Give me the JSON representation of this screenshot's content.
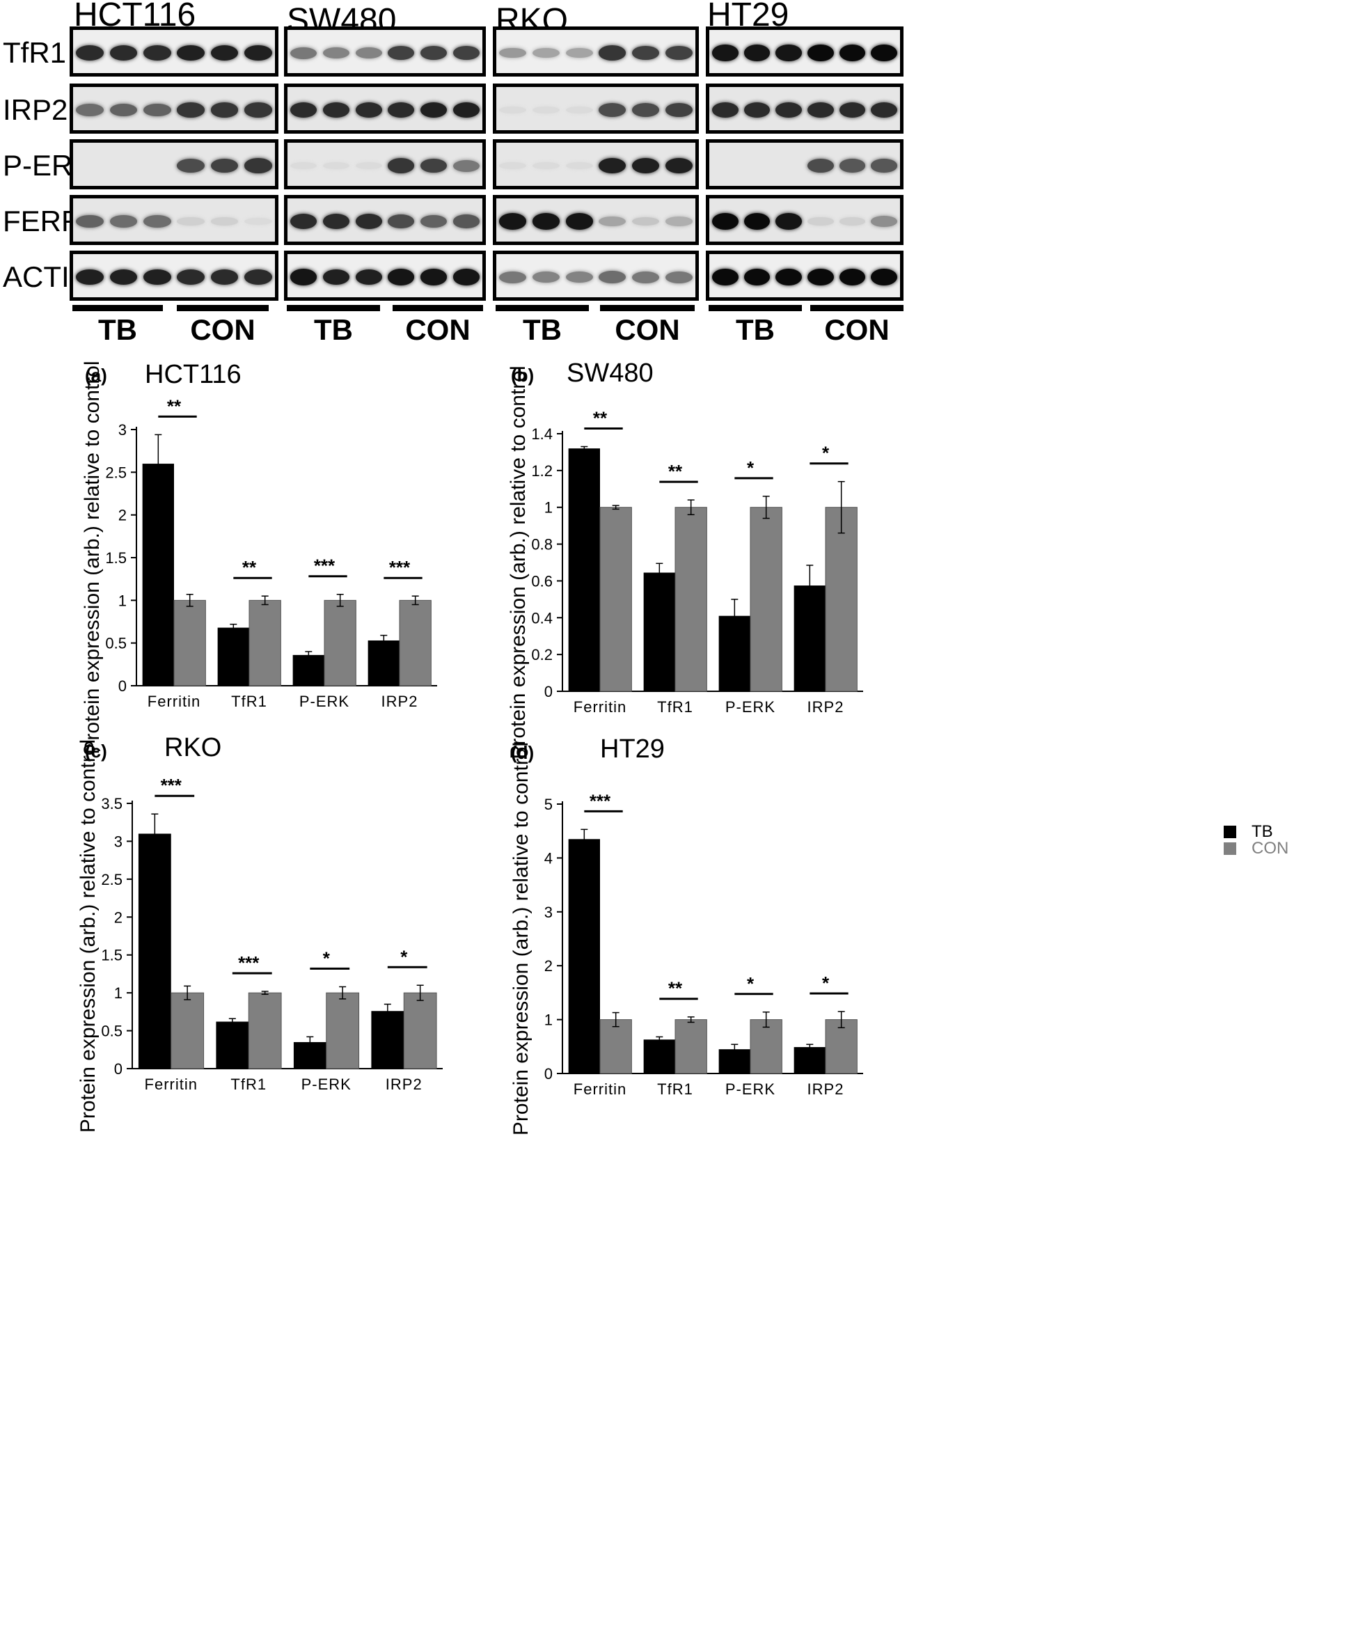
{
  "blots": {
    "cell_lines": [
      "HCT116",
      "SW480",
      "RKO",
      "HT29"
    ],
    "rows": [
      "TfR1",
      "IRP2",
      "P-ERK",
      "FERR",
      "ACTIN"
    ],
    "groups": [
      "TB",
      "CON"
    ],
    "band_intensity": {
      "HCT116": {
        "TfR1": [
          0.85,
          0.85,
          0.85,
          0.9,
          0.9,
          0.9
        ],
        "IRP2": [
          0.55,
          0.6,
          0.6,
          0.8,
          0.8,
          0.8
        ],
        "P-ERK": [
          0,
          0,
          0,
          0.7,
          0.75,
          0.8
        ],
        "FERR": [
          0.6,
          0.55,
          0.55,
          0.1,
          0.1,
          0.05
        ],
        "ACTIN": [
          0.9,
          0.9,
          0.9,
          0.85,
          0.85,
          0.85
        ]
      },
      "SW480": {
        "TfR1": [
          0.5,
          0.45,
          0.45,
          0.75,
          0.75,
          0.75
        ],
        "IRP2": [
          0.85,
          0.85,
          0.85,
          0.85,
          0.9,
          0.9
        ],
        "P-ERK": [
          0.05,
          0.05,
          0.05,
          0.8,
          0.75,
          0.5
        ],
        "FERR": [
          0.85,
          0.85,
          0.85,
          0.7,
          0.6,
          0.65
        ],
        "ACTIN": [
          0.95,
          0.9,
          0.9,
          0.95,
          0.95,
          0.95
        ]
      },
      "RKO": {
        "TfR1": [
          0.35,
          0.3,
          0.3,
          0.8,
          0.75,
          0.75
        ],
        "IRP2": [
          0.05,
          0.05,
          0.05,
          0.7,
          0.7,
          0.75
        ],
        "P-ERK": [
          0.05,
          0.05,
          0.05,
          0.9,
          0.9,
          0.9
        ],
        "FERR": [
          0.95,
          0.95,
          0.95,
          0.3,
          0.15,
          0.25
        ],
        "ACTIN": [
          0.5,
          0.45,
          0.45,
          0.55,
          0.5,
          0.5
        ]
      },
      "HT29": {
        "TfR1": [
          0.95,
          0.95,
          0.95,
          1,
          1,
          1
        ],
        "IRP2": [
          0.85,
          0.85,
          0.85,
          0.85,
          0.85,
          0.85
        ],
        "P-ERK": [
          0,
          0,
          0,
          0.7,
          0.65,
          0.65
        ],
        "FERR": [
          1,
          1,
          0.95,
          0.1,
          0.1,
          0.4
        ],
        "ACTIN": [
          1,
          1,
          1,
          1,
          1,
          1
        ]
      }
    }
  },
  "legend": {
    "items": [
      {
        "label": "TB",
        "color": "#000000"
      },
      {
        "label": "CON",
        "color": "#808080"
      }
    ]
  },
  "chart_data": [
    {
      "type": "bar",
      "panel_label": "(a)",
      "title": "HCT116",
      "ylabel": "Protein expression (arb.) relative to control",
      "categories": [
        "Ferritin",
        "TfR1",
        "P-ERK",
        "IRP2"
      ],
      "series": [
        {
          "name": "TB",
          "values": [
            2.6,
            0.68,
            0.36,
            0.53
          ],
          "errors": [
            0.34,
            0.04,
            0.04,
            0.06
          ]
        },
        {
          "name": "CON",
          "values": [
            1,
            1,
            1,
            1
          ],
          "errors": [
            0.07,
            0.05,
            0.07,
            0.05
          ]
        }
      ],
      "significance": [
        "**",
        "**",
        "***",
        "***"
      ],
      "yticks": [
        "0",
        "0.5",
        "1",
        "1.5",
        "2",
        "2.5",
        "3"
      ],
      "ylim": [
        0,
        3
      ]
    },
    {
      "type": "bar",
      "panel_label": "(b)",
      "title": "SW480",
      "ylabel": "Protein expression (arb.) relative to control",
      "categories": [
        "Ferritin",
        "TfR1",
        "P-ERK",
        "IRP2"
      ],
      "series": [
        {
          "name": "TB",
          "values": [
            1.32,
            0.645,
            0.41,
            0.575
          ],
          "errors": [
            0.01,
            0.05,
            0.09,
            0.11
          ]
        },
        {
          "name": "CON",
          "values": [
            1,
            1,
            1,
            1
          ],
          "errors": [
            0.01,
            0.04,
            0.06,
            0.14
          ]
        }
      ],
      "significance": [
        "**",
        "**",
        "*",
        "*"
      ],
      "yticks": [
        "0",
        "0.2",
        "0.4",
        "0.6",
        "0.8",
        "1",
        "1.2",
        "1.4"
      ],
      "ylim": [
        0,
        1.4
      ]
    },
    {
      "type": "bar",
      "panel_label": "(c)",
      "title": "RKO",
      "ylabel": "Protein expression (arb.) relative to control",
      "categories": [
        "Ferritin",
        "TfR1",
        "P-ERK",
        "IRP2"
      ],
      "series": [
        {
          "name": "TB",
          "values": [
            3.1,
            0.62,
            0.35,
            0.76
          ],
          "errors": [
            0.26,
            0.04,
            0.07,
            0.09
          ]
        },
        {
          "name": "CON",
          "values": [
            1,
            1,
            1,
            1
          ],
          "errors": [
            0.09,
            0.02,
            0.08,
            0.1
          ]
        }
      ],
      "significance": [
        "***",
        "***",
        "*",
        "*"
      ],
      "yticks": [
        "0",
        "0.5",
        "1",
        "1.5",
        "2",
        "2.5",
        "3",
        "3.5"
      ],
      "ylim": [
        0,
        3.5
      ]
    },
    {
      "type": "bar",
      "panel_label": "(d)",
      "title": "HT29",
      "ylabel": "Protein expression (arb.) relative to control",
      "categories": [
        "Ferritin",
        "TfR1",
        "P-ERK",
        "IRP2"
      ],
      "series": [
        {
          "name": "TB",
          "values": [
            4.35,
            0.63,
            0.45,
            0.49
          ],
          "errors": [
            0.18,
            0.05,
            0.09,
            0.05
          ]
        },
        {
          "name": "CON",
          "values": [
            1,
            1,
            1,
            1
          ],
          "errors": [
            0.13,
            0.05,
            0.14,
            0.15
          ]
        }
      ],
      "significance": [
        "***",
        "**",
        "*",
        "*"
      ],
      "yticks": [
        "0",
        "1",
        "2",
        "3",
        "4",
        "5"
      ],
      "ylim": [
        0,
        5
      ]
    }
  ]
}
